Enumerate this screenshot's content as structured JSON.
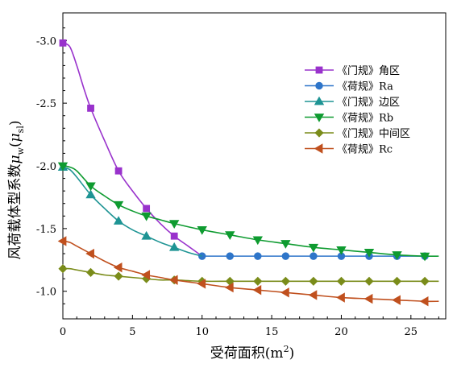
{
  "chart_data": {
    "type": "line",
    "xlabel_prefix": "受荷面积(m",
    "xlabel_sup": "2",
    "xlabel_suffix": ")",
    "ylabel_text": "风荷载体型系数",
    "ylabel_mu1": "μ",
    "ylabel_sub1": "w",
    "ylabel_mu2": "μ",
    "ylabel_sub2": "sl",
    "xlim": [
      0,
      27.5
    ],
    "ylim": [
      -0.78,
      -3.22
    ],
    "x_ticks": [
      0,
      5,
      10,
      15,
      20,
      25
    ],
    "y_ticks": [
      -3.0,
      -2.5,
      -2.0,
      -1.5,
      -1.0
    ],
    "x_tick_labels": [
      "0",
      "5",
      "10",
      "15",
      "20",
      "25"
    ],
    "y_tick_labels": [
      "-3.0",
      "-2.5",
      "-2.0",
      "-1.5",
      "-1.0"
    ],
    "grid": false,
    "legend_position": "top-right",
    "series": [
      {
        "name": "《门规》角区",
        "color": "#9932CC",
        "marker": "square",
        "curve": [
          [
            0,
            -2.98
          ],
          [
            0.5,
            -2.95
          ],
          [
            1,
            -2.8
          ],
          [
            1.5,
            -2.62
          ],
          [
            2,
            -2.46
          ],
          [
            3,
            -2.2
          ],
          [
            4,
            -1.96
          ],
          [
            5,
            -1.8
          ],
          [
            6,
            -1.66
          ],
          [
            7,
            -1.54
          ],
          [
            8,
            -1.44
          ],
          [
            9,
            -1.36
          ],
          [
            10,
            -1.28
          ]
        ],
        "markers": [
          [
            0,
            -2.98
          ],
          [
            2,
            -2.46
          ],
          [
            4,
            -1.96
          ],
          [
            6,
            -1.66
          ],
          [
            8,
            -1.44
          ]
        ]
      },
      {
        "name": "《荷规》Ra",
        "color": "#2E75C9",
        "marker": "circle",
        "curve": [
          [
            10,
            -1.28
          ],
          [
            12,
            -1.28
          ],
          [
            14,
            -1.28
          ],
          [
            16,
            -1.28
          ],
          [
            18,
            -1.28
          ],
          [
            20,
            -1.28
          ],
          [
            22,
            -1.28
          ],
          [
            24,
            -1.28
          ],
          [
            26,
            -1.28
          ]
        ],
        "markers": [
          [
            10,
            -1.28
          ],
          [
            12,
            -1.28
          ],
          [
            14,
            -1.28
          ],
          [
            16,
            -1.28
          ],
          [
            18,
            -1.28
          ],
          [
            20,
            -1.28
          ],
          [
            22,
            -1.28
          ],
          [
            24,
            -1.28
          ],
          [
            26,
            -1.28
          ]
        ]
      },
      {
        "name": "《门规》边区",
        "color": "#1E9494",
        "marker": "triangle-up",
        "curve": [
          [
            0,
            -1.99
          ],
          [
            0.5,
            -1.97
          ],
          [
            1,
            -1.91
          ],
          [
            2,
            -1.77
          ],
          [
            3,
            -1.66
          ],
          [
            4,
            -1.56
          ],
          [
            5,
            -1.49
          ],
          [
            6,
            -1.44
          ],
          [
            7,
            -1.39
          ],
          [
            8,
            -1.35
          ],
          [
            9,
            -1.31
          ],
          [
            10,
            -1.28
          ]
        ],
        "markers": [
          [
            0,
            -1.99
          ],
          [
            2,
            -1.77
          ],
          [
            4,
            -1.56
          ],
          [
            6,
            -1.44
          ],
          [
            8,
            -1.35
          ]
        ]
      },
      {
        "name": "《荷规》Rb",
        "color": "#0E9B30",
        "marker": "triangle-down",
        "curve": [
          [
            0,
            -2.0
          ],
          [
            0.5,
            -1.99
          ],
          [
            1,
            -1.96
          ],
          [
            2,
            -1.84
          ],
          [
            3,
            -1.76
          ],
          [
            4,
            -1.69
          ],
          [
            5,
            -1.64
          ],
          [
            6,
            -1.6
          ],
          [
            7,
            -1.57
          ],
          [
            8,
            -1.54
          ],
          [
            10,
            -1.49
          ],
          [
            12,
            -1.45
          ],
          [
            14,
            -1.41
          ],
          [
            16,
            -1.38
          ],
          [
            18,
            -1.35
          ],
          [
            20,
            -1.33
          ],
          [
            22,
            -1.31
          ],
          [
            24,
            -1.29
          ],
          [
            26,
            -1.28
          ],
          [
            27,
            -1.28
          ]
        ],
        "markers": [
          [
            0,
            -2.0
          ],
          [
            2,
            -1.84
          ],
          [
            4,
            -1.69
          ],
          [
            6,
            -1.6
          ],
          [
            8,
            -1.54
          ],
          [
            10,
            -1.49
          ],
          [
            12,
            -1.45
          ],
          [
            14,
            -1.41
          ],
          [
            16,
            -1.38
          ],
          [
            18,
            -1.35
          ],
          [
            20,
            -1.33
          ],
          [
            22,
            -1.31
          ],
          [
            24,
            -1.29
          ],
          [
            26,
            -1.28
          ]
        ]
      },
      {
        "name": "《门规》中间区",
        "color": "#7A8C1A",
        "marker": "diamond",
        "curve": [
          [
            0,
            -1.18
          ],
          [
            0.5,
            -1.18
          ],
          [
            1,
            -1.17
          ],
          [
            2,
            -1.15
          ],
          [
            3,
            -1.13
          ],
          [
            4,
            -1.12
          ],
          [
            5,
            -1.11
          ],
          [
            6,
            -1.1
          ],
          [
            7,
            -1.09
          ],
          [
            8,
            -1.09
          ],
          [
            10,
            -1.08
          ],
          [
            12,
            -1.08
          ],
          [
            14,
            -1.08
          ],
          [
            16,
            -1.08
          ],
          [
            18,
            -1.08
          ],
          [
            20,
            -1.08
          ],
          [
            22,
            -1.08
          ],
          [
            24,
            -1.08
          ],
          [
            26,
            -1.08
          ],
          [
            27,
            -1.08
          ]
        ],
        "markers": [
          [
            0,
            -1.18
          ],
          [
            2,
            -1.15
          ],
          [
            4,
            -1.12
          ],
          [
            6,
            -1.1
          ],
          [
            8,
            -1.09
          ],
          [
            10,
            -1.08
          ],
          [
            12,
            -1.08
          ],
          [
            14,
            -1.08
          ],
          [
            16,
            -1.08
          ],
          [
            18,
            -1.08
          ],
          [
            20,
            -1.08
          ],
          [
            22,
            -1.08
          ],
          [
            24,
            -1.08
          ],
          [
            26,
            -1.08
          ]
        ]
      },
      {
        "name": "《荷规》Rc",
        "color": "#C0501E",
        "marker": "triangle-left",
        "curve": [
          [
            0,
            -1.4
          ],
          [
            0.5,
            -1.39
          ],
          [
            1,
            -1.36
          ],
          [
            2,
            -1.3
          ],
          [
            3,
            -1.24
          ],
          [
            4,
            -1.19
          ],
          [
            5,
            -1.16
          ],
          [
            6,
            -1.13
          ],
          [
            7,
            -1.11
          ],
          [
            8,
            -1.09
          ],
          [
            10,
            -1.06
          ],
          [
            12,
            -1.03
          ],
          [
            14,
            -1.01
          ],
          [
            16,
            -0.99
          ],
          [
            18,
            -0.97
          ],
          [
            20,
            -0.95
          ],
          [
            22,
            -0.94
          ],
          [
            24,
            -0.93
          ],
          [
            26,
            -0.92
          ],
          [
            27,
            -0.92
          ]
        ],
        "markers": [
          [
            0,
            -1.4
          ],
          [
            2,
            -1.3
          ],
          [
            4,
            -1.19
          ],
          [
            6,
            -1.13
          ],
          [
            8,
            -1.09
          ],
          [
            10,
            -1.06
          ],
          [
            12,
            -1.03
          ],
          [
            14,
            -1.01
          ],
          [
            16,
            -0.99
          ],
          [
            18,
            -0.97
          ],
          [
            20,
            -0.95
          ],
          [
            22,
            -0.94
          ],
          [
            24,
            -0.93
          ],
          [
            26,
            -0.92
          ]
        ]
      }
    ]
  }
}
